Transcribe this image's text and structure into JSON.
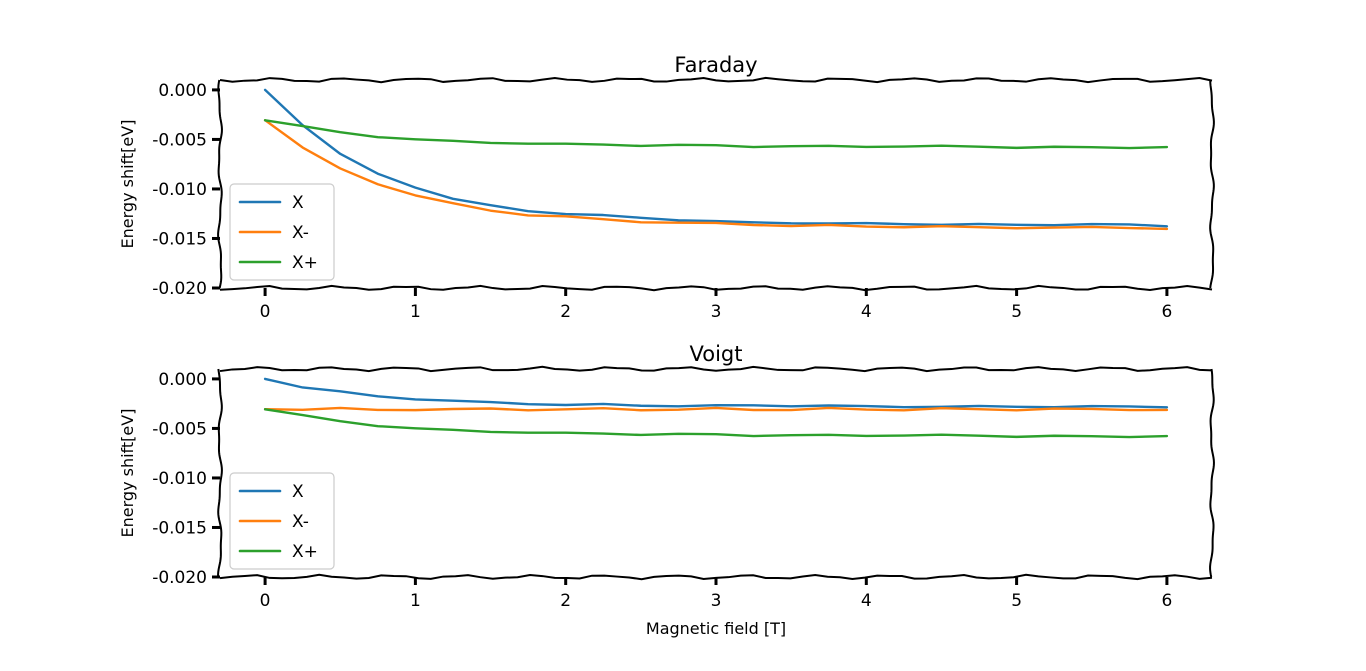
{
  "chart_data": [
    {
      "type": "line",
      "title": "Faraday",
      "xlabel": "",
      "ylabel": "Energy shift[eV]",
      "xlim": [
        -0.3,
        6.3
      ],
      "ylim": [
        -0.02,
        0.001
      ],
      "xticks": [
        0,
        1,
        2,
        3,
        4,
        5,
        6
      ],
      "xtick_labels": [
        "0",
        "1",
        "2",
        "3",
        "4",
        "5",
        "6"
      ],
      "yticks": [
        0.0,
        -0.005,
        -0.01,
        -0.015,
        -0.02
      ],
      "ytick_labels": [
        "0.000",
        "-0.005",
        "-0.010",
        "-0.015",
        "-0.020"
      ],
      "legend_position": "lower-left",
      "grid": false,
      "x": [
        0,
        0.25,
        0.5,
        0.75,
        1.0,
        1.25,
        1.5,
        1.75,
        2.0,
        2.25,
        2.5,
        2.75,
        3.0,
        3.25,
        3.5,
        3.75,
        4.0,
        4.25,
        4.5,
        4.75,
        5.0,
        5.25,
        5.5,
        5.75,
        6.0
      ],
      "series": [
        {
          "name": "X",
          "color": "#1f77b4",
          "values": [
            0.0,
            -0.0035,
            -0.0065,
            -0.0085,
            -0.0098,
            -0.011,
            -0.0117,
            -0.0122,
            -0.0125,
            -0.0127,
            -0.0129,
            -0.0131,
            -0.0133,
            -0.0134,
            -0.0134,
            -0.0135,
            -0.0135,
            -0.0135,
            -0.0136,
            -0.0136,
            -0.0136,
            -0.0136,
            -0.0136,
            -0.0136,
            -0.0137
          ]
        },
        {
          "name": "X-",
          "color": "#ff7f0e",
          "values": [
            -0.003,
            -0.0058,
            -0.008,
            -0.0095,
            -0.0106,
            -0.0115,
            -0.0122,
            -0.0126,
            -0.0128,
            -0.0131,
            -0.0133,
            -0.0134,
            -0.0135,
            -0.0136,
            -0.0137,
            -0.0137,
            -0.0138,
            -0.0138,
            -0.0138,
            -0.0139,
            -0.0139,
            -0.0139,
            -0.0139,
            -0.0139,
            -0.014
          ]
        },
        {
          "name": "X+",
          "color": "#2ca02c",
          "values": [
            -0.003,
            -0.0037,
            -0.0043,
            -0.0047,
            -0.005,
            -0.0052,
            -0.0053,
            -0.0054,
            -0.0055,
            -0.0055,
            -0.0056,
            -0.0056,
            -0.0056,
            -0.0057,
            -0.0057,
            -0.0057,
            -0.0057,
            -0.0057,
            -0.0057,
            -0.0057,
            -0.0058,
            -0.0058,
            -0.0058,
            -0.0058,
            -0.0058
          ]
        }
      ]
    },
    {
      "type": "line",
      "title": "Voigt",
      "xlabel": "Magnetic field [T]",
      "ylabel": "Energy shift[eV]",
      "xlim": [
        -0.3,
        6.3
      ],
      "ylim": [
        -0.02,
        0.001
      ],
      "xticks": [
        0,
        1,
        2,
        3,
        4,
        5,
        6
      ],
      "xtick_labels": [
        "0",
        "1",
        "2",
        "3",
        "4",
        "5",
        "6"
      ],
      "yticks": [
        0.0,
        -0.005,
        -0.01,
        -0.015,
        -0.02
      ],
      "ytick_labels": [
        "0.000",
        "-0.005",
        "-0.010",
        "-0.015",
        "-0.020"
      ],
      "legend_position": "lower-left",
      "grid": false,
      "x": [
        0,
        0.25,
        0.5,
        0.75,
        1.0,
        1.25,
        1.5,
        1.75,
        2.0,
        2.25,
        2.5,
        2.75,
        3.0,
        3.25,
        3.5,
        3.75,
        4.0,
        4.25,
        4.5,
        4.75,
        5.0,
        5.25,
        5.5,
        5.75,
        6.0
      ],
      "series": [
        {
          "name": "X",
          "color": "#1f77b4",
          "values": [
            0.0,
            -0.0008,
            -0.0013,
            -0.0018,
            -0.002,
            -0.0022,
            -0.0024,
            -0.0025,
            -0.0026,
            -0.0026,
            -0.0027,
            -0.0027,
            -0.0027,
            -0.0027,
            -0.0027,
            -0.0027,
            -0.0028,
            -0.0028,
            -0.0028,
            -0.0028,
            -0.0028,
            -0.0028,
            -0.0028,
            -0.0028,
            -0.0028
          ]
        },
        {
          "name": "X-",
          "color": "#ff7f0e",
          "values": [
            -0.003,
            -0.0031,
            -0.003,
            -0.0031,
            -0.0031,
            -0.0031,
            -0.003,
            -0.0031,
            -0.0031,
            -0.003,
            -0.0031,
            -0.0031,
            -0.003,
            -0.0031,
            -0.0031,
            -0.003,
            -0.0031,
            -0.0031,
            -0.003,
            -0.0031,
            -0.0031,
            -0.003,
            -0.0031,
            -0.0031,
            -0.0031
          ]
        },
        {
          "name": "X+",
          "color": "#2ca02c",
          "values": [
            -0.003,
            -0.0037,
            -0.0043,
            -0.0047,
            -0.005,
            -0.0052,
            -0.0053,
            -0.0054,
            -0.0055,
            -0.0055,
            -0.0056,
            -0.0056,
            -0.0056,
            -0.0057,
            -0.0057,
            -0.0057,
            -0.0057,
            -0.0057,
            -0.0057,
            -0.0057,
            -0.0058,
            -0.0058,
            -0.0058,
            -0.0058,
            -0.0058
          ]
        }
      ]
    }
  ]
}
